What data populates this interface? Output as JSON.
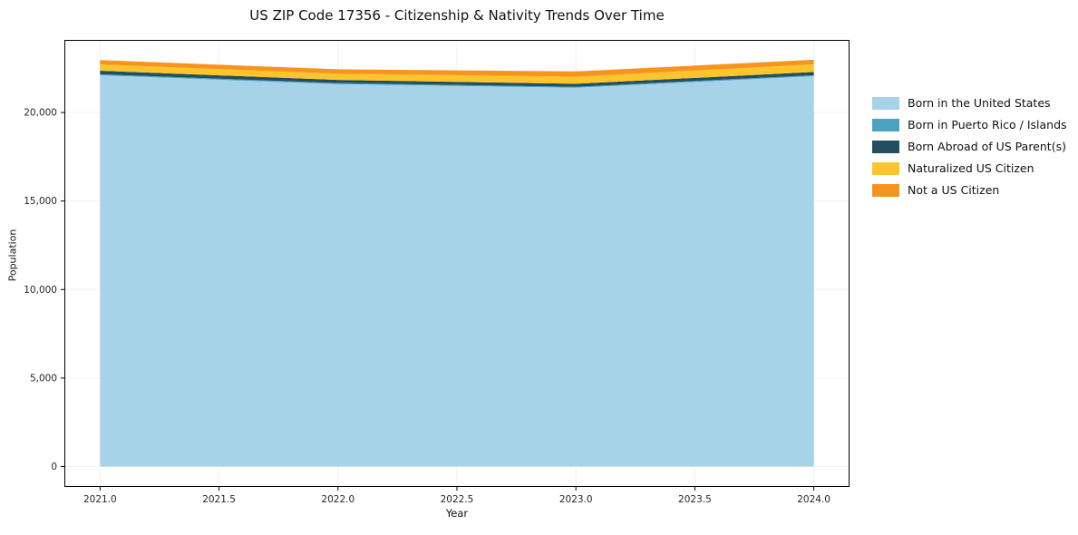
{
  "chart_data": {
    "type": "area",
    "stacked": true,
    "title": "US ZIP Code 17356 - Citizenship & Nativity Trends Over Time",
    "xlabel": "Year",
    "ylabel": "Population",
    "x": [
      2021,
      2022,
      2023,
      2024
    ],
    "series": [
      {
        "name": "Born in the United States",
        "color": "#a6d3e8",
        "values": [
          22100,
          21600,
          21400,
          22050
        ]
      },
      {
        "name": "Born in Puerto Rico / Islands",
        "color": "#4aa3c0",
        "values": [
          60,
          60,
          50,
          60
        ]
      },
      {
        "name": "Born Abroad of US Parent(s)",
        "color": "#234e5e",
        "values": [
          200,
          180,
          170,
          180
        ]
      },
      {
        "name": "Naturalized US Citizen",
        "color": "#fcc52c",
        "values": [
          350,
          350,
          400,
          430
        ]
      },
      {
        "name": "Not a US Citizen",
        "color": "#f79420",
        "values": [
          250,
          250,
          300,
          260
        ]
      }
    ],
    "xticks": [
      2021.0,
      2021.5,
      2022.0,
      2022.5,
      2023.0,
      2023.5,
      2024.0
    ],
    "yticks": [
      0,
      5000,
      10000,
      15000,
      20000
    ],
    "xlim": [
      2020.85,
      2024.15
    ],
    "ylim": [
      -1150,
      24100
    ],
    "grid": true,
    "legend_position": "right",
    "tick_color": "#262626",
    "grid_color": "#f0f0f0",
    "spine_color": "#000000"
  }
}
